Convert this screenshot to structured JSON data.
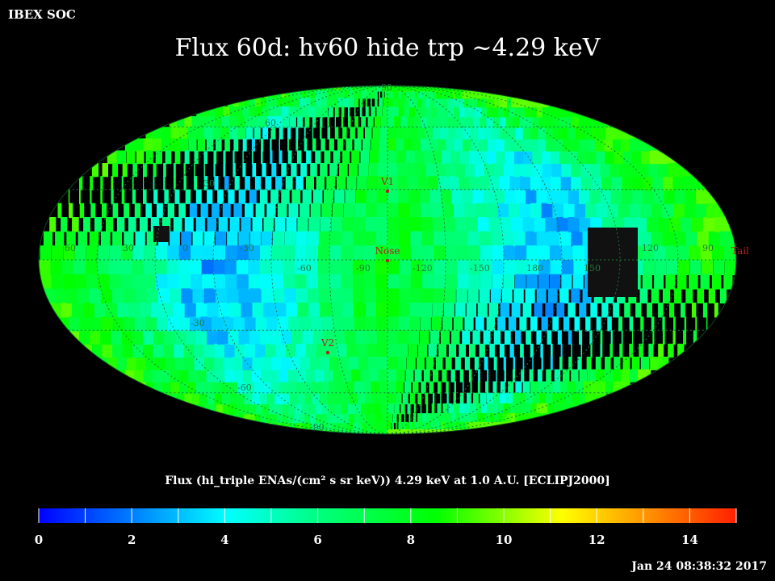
{
  "header": {
    "org": "IBEX SOC",
    "title": "Flux   60d: hv60 hide trp ~4.29 keV"
  },
  "map": {
    "grid_labels": {
      "lat": [
        "90",
        "60",
        "30",
        "-30",
        "-60",
        "-90"
      ],
      "lon": [
        "60",
        "30",
        "0",
        "-30",
        "-60",
        "-90",
        "-120",
        "-150",
        "180",
        "150",
        "120",
        "90"
      ]
    },
    "markers": [
      {
        "name": "V1",
        "lon_deg": 255,
        "lat_deg": 35,
        "label": "V1"
      },
      {
        "name": "Nose",
        "lon_deg": 255,
        "lat_deg": 5,
        "label": "Nose"
      },
      {
        "name": "V2",
        "lon_deg": 290,
        "lat_deg": -32,
        "label": "V2"
      },
      {
        "name": "Tail",
        "lon_deg": 75,
        "lat_deg": 0,
        "label": "Tail"
      }
    ],
    "colors": {
      "grid": "#1e7a3c",
      "marker": "#b41e1e",
      "no_data": "#111111"
    }
  },
  "colorbar": {
    "title": "Flux (hi_triple ENAs/(cm² s sr keV))  4.29 keV at 1.0 A.U. [ECLIPJ2000]",
    "min": 0,
    "max": 15,
    "ticks": [
      {
        "label": "0",
        "value": 0
      },
      {
        "label": "2",
        "value": 2
      },
      {
        "label": "4",
        "value": 4
      },
      {
        "label": "6",
        "value": 6
      },
      {
        "label": "8",
        "value": 8
      },
      {
        "label": "10",
        "value": 10
      },
      {
        "label": "12",
        "value": 12
      },
      {
        "label": "14",
        "value": 14
      }
    ]
  },
  "footer": {
    "timestamp": "Jan 24 08:38:32 2017"
  }
}
